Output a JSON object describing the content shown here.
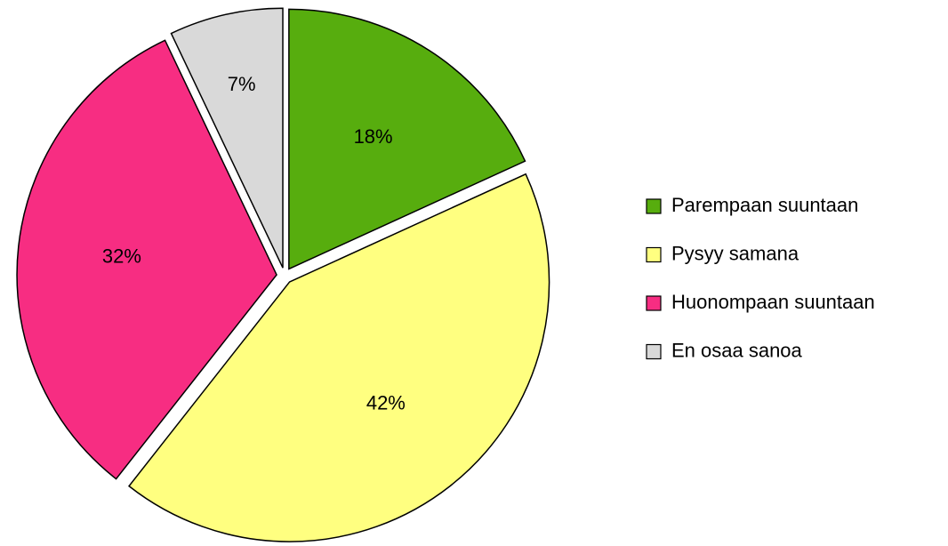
{
  "chart_data": {
    "type": "pie",
    "categories": [
      "Parempaan suuntaan",
      "Pysyy samana",
      "Huonompaan suuntaan",
      "En osaa sanoa"
    ],
    "values": [
      18,
      42,
      32,
      7
    ],
    "value_labels": [
      "18%",
      "42%",
      "32%",
      "7%"
    ],
    "colors": [
      "#57ad0e",
      "#ffff80",
      "#f72d82",
      "#d9d9d9"
    ],
    "legend": "right"
  }
}
